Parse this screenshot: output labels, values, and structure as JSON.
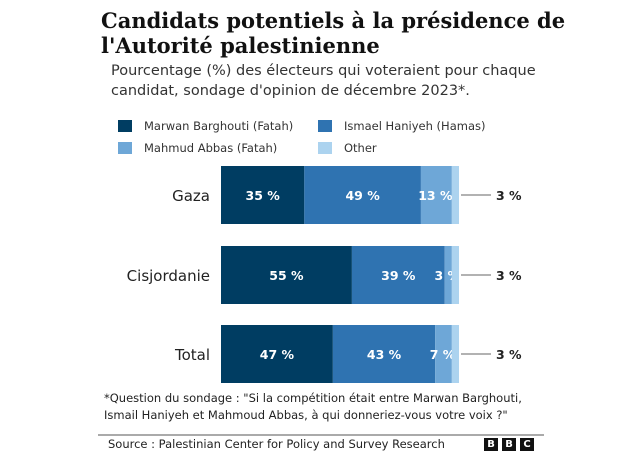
{
  "chart_data": {
    "type": "bar",
    "orientation": "horizontal",
    "stacked": true,
    "title": "Candidats potentiels à la présidence de l'Autorité palestinienne",
    "subtitle": "Pourcentage (%) des électeurs qui voteraient pour chaque candidat, sondage d'opinion de décembre 2023*.",
    "categories": [
      "Gaza",
      "Cisjordanie",
      "Total"
    ],
    "series": [
      {
        "name": "Marwan Barghouti (Fatah)",
        "color": "#003d62",
        "values": [
          35,
          55,
          47
        ]
      },
      {
        "name": "Ismael Haniyeh (Hamas)",
        "color": "#2f73b1",
        "values": [
          49,
          39,
          43
        ]
      },
      {
        "name": "Mahmud Abbas (Fatah)",
        "color": "#6ea7d7",
        "values": [
          13,
          3,
          7
        ]
      },
      {
        "name": "Other",
        "color": "#acd3ef",
        "values": [
          3,
          3,
          3
        ]
      }
    ],
    "value_suffix": " %",
    "xlim": [
      0,
      100
    ],
    "grid": false,
    "legend_position": "top"
  },
  "footnote": "*Question du sondage : \"Si la compétition était entre Marwan Barghouti, Ismail Haniyeh et Mahmoud Abbas, à qui donneriez-vous votre voix ?\"",
  "source": "Source : Palestinian Center for Policy and Survey Research",
  "logo": [
    "B",
    "B",
    "C"
  ]
}
